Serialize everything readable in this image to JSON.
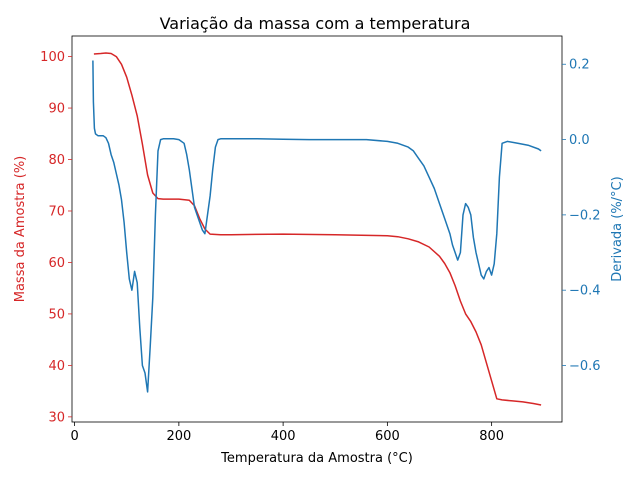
{
  "chart_data": {
    "type": "line",
    "title": "Variação da massa com a temperatura",
    "xlabel": "Temperatura da Amostra (°C)",
    "ylabel": "Massa da Amostra (%)",
    "y2label": "Derivada (%/°C)",
    "xlim": [
      -5,
      935
    ],
    "ylim": [
      29,
      104
    ],
    "y2lim": [
      -0.75,
      0.275
    ],
    "xticks": [
      0,
      200,
      400,
      600,
      800
    ],
    "yticks": [
      30,
      40,
      50,
      60,
      70,
      80,
      90,
      100
    ],
    "y2ticks": [
      -0.6,
      -0.4,
      -0.2,
      0.0,
      0.2
    ],
    "xtick_labels": [
      "0",
      "200",
      "400",
      "600",
      "800"
    ],
    "ytick_labels": [
      "30",
      "40",
      "50",
      "60",
      "70",
      "80",
      "90",
      "100"
    ],
    "y2tick_labels": [
      "−0.6",
      "−0.4",
      "−0.2",
      "0.0",
      "0.2"
    ],
    "grid": false,
    "colors": {
      "mass": "#d62728",
      "derivative": "#1f77b4"
    },
    "series": [
      {
        "axis": "left",
        "x": [
          37,
          50,
          60,
          70,
          80,
          90,
          100,
          110,
          120,
          130,
          140,
          150,
          160,
          170,
          180,
          200,
          220,
          230,
          240,
          250,
          260,
          280,
          300,
          400,
          500,
          550,
          600,
          620,
          640,
          660,
          680,
          700,
          710,
          720,
          730,
          740,
          750,
          760,
          770,
          780,
          790,
          800,
          810,
          820,
          840,
          860,
          880,
          895
        ],
        "values": [
          100.5,
          100.6,
          100.7,
          100.6,
          100.0,
          98.5,
          96.0,
          92.5,
          88.5,
          83.0,
          77.0,
          73.5,
          72.4,
          72.3,
          72.3,
          72.3,
          72.1,
          71.0,
          68.5,
          66.5,
          65.5,
          65.4,
          65.4,
          65.5,
          65.4,
          65.3,
          65.2,
          65.0,
          64.6,
          64.0,
          63.0,
          61.2,
          59.8,
          58.0,
          55.5,
          52.5,
          50.0,
          48.5,
          46.5,
          44.0,
          40.5,
          37.0,
          33.5,
          33.3,
          33.1,
          32.9,
          32.6,
          32.3
        ]
      },
      {
        "axis": "right",
        "x": [
          35,
          36,
          38,
          40,
          45,
          50,
          55,
          60,
          65,
          70,
          75,
          80,
          85,
          90,
          95,
          100,
          105,
          110,
          115,
          120,
          125,
          130,
          135,
          140,
          145,
          150,
          155,
          160,
          165,
          170,
          180,
          190,
          200,
          210,
          215,
          220,
          225,
          230,
          235,
          240,
          245,
          250,
          255,
          260,
          265,
          270,
          275,
          280,
          290,
          300,
          350,
          400,
          450,
          500,
          550,
          560,
          600,
          620,
          640,
          650,
          660,
          670,
          680,
          690,
          700,
          710,
          720,
          725,
          730,
          735,
          740,
          745,
          750,
          755,
          760,
          765,
          770,
          775,
          780,
          785,
          790,
          795,
          800,
          805,
          810,
          815,
          820,
          830,
          850,
          870,
          890,
          895
        ],
        "values": [
          0.21,
          0.1,
          0.03,
          0.015,
          0.01,
          0.01,
          0.01,
          0.005,
          -0.01,
          -0.04,
          -0.06,
          -0.09,
          -0.12,
          -0.16,
          -0.22,
          -0.3,
          -0.37,
          -0.4,
          -0.35,
          -0.38,
          -0.5,
          -0.6,
          -0.62,
          -0.67,
          -0.55,
          -0.42,
          -0.2,
          -0.03,
          0.0,
          0.002,
          0.002,
          0.002,
          0.0,
          -0.01,
          -0.04,
          -0.08,
          -0.13,
          -0.18,
          -0.2,
          -0.22,
          -0.24,
          -0.25,
          -0.2,
          -0.15,
          -0.08,
          -0.02,
          0.0,
          0.002,
          0.002,
          0.002,
          0.002,
          0.001,
          0.0,
          0.0,
          0.0,
          0.0,
          -0.005,
          -0.01,
          -0.02,
          -0.03,
          -0.05,
          -0.07,
          -0.1,
          -0.13,
          -0.17,
          -0.21,
          -0.25,
          -0.28,
          -0.3,
          -0.32,
          -0.3,
          -0.2,
          -0.17,
          -0.18,
          -0.2,
          -0.26,
          -0.3,
          -0.33,
          -0.36,
          -0.37,
          -0.35,
          -0.34,
          -0.36,
          -0.33,
          -0.25,
          -0.1,
          -0.01,
          -0.005,
          -0.01,
          -0.015,
          -0.025,
          -0.03
        ]
      }
    ]
  }
}
